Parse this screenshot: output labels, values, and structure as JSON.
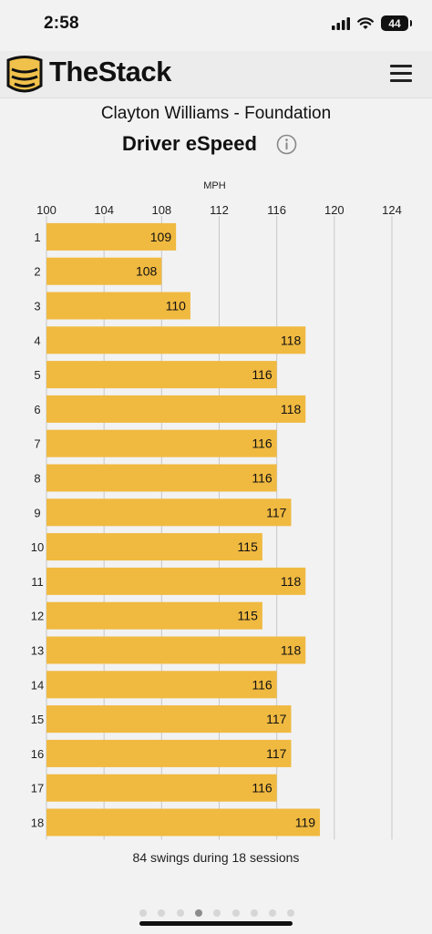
{
  "status_bar": {
    "time": "2:58",
    "battery": "44"
  },
  "header": {
    "app_name": "TheStack",
    "logo_color": "#f0c14b"
  },
  "page": {
    "subtitle": "Clayton Williams - Foundation",
    "title": "Driver eSpeed",
    "footer": "84 swings during 18 sessions"
  },
  "pager": {
    "count": 9,
    "active_index": 3
  },
  "chart_data": {
    "type": "bar",
    "orientation": "horizontal",
    "title": "Driver eSpeed",
    "xlabel": "MPH",
    "ylabel": "",
    "xlim": [
      100,
      124
    ],
    "xticks": [
      100,
      104,
      108,
      112,
      116,
      120,
      124
    ],
    "categories": [
      "1",
      "2",
      "3",
      "4",
      "5",
      "6",
      "7",
      "8",
      "9",
      "10",
      "11",
      "12",
      "13",
      "14",
      "15",
      "16",
      "17",
      "18"
    ],
    "values": [
      109,
      108,
      110,
      118,
      116,
      118,
      116,
      116,
      117,
      115,
      118,
      115,
      118,
      116,
      117,
      117,
      116,
      119
    ],
    "bar_color": "#f0b940",
    "grid": true,
    "legend": "none"
  }
}
